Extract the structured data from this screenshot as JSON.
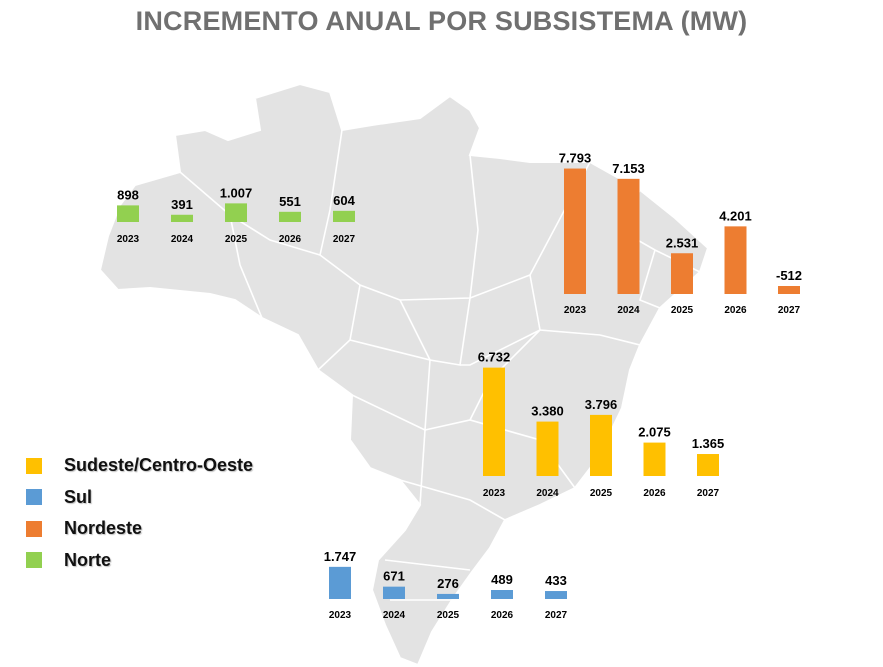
{
  "colors": {
    "map_fill": "#e3e3e3",
    "map_border": "#ffffff",
    "title": "#707070"
  },
  "title": "INCREMENTO ANUAL POR SUBSISTEMA (MW)",
  "legend": [
    {
      "label": "Sudeste/Centro-Oeste",
      "color": "#ffc000"
    },
    {
      "label": "Sul",
      "color": "#5b9bd5"
    },
    {
      "label": "Nordeste",
      "color": "#ed7d31"
    },
    {
      "label": "Norte",
      "color": "#92d050"
    }
  ],
  "chart_data": [
    {
      "type": "bar",
      "region": "Norte",
      "color": "#92d050",
      "categories": [
        "2023",
        "2024",
        "2025",
        "2026",
        "2027"
      ],
      "values": [
        898,
        391,
        1007,
        551,
        604
      ],
      "value_labels": [
        "898",
        "391",
        "1.007",
        "551",
        "604"
      ]
    },
    {
      "type": "bar",
      "region": "Nordeste",
      "color": "#ed7d31",
      "categories": [
        "2023",
        "2024",
        "2025",
        "2026",
        "2027"
      ],
      "values": [
        7793,
        7153,
        2531,
        4201,
        -512
      ],
      "value_labels": [
        "7.793",
        "7.153",
        "2.531",
        "4.201",
        "-512"
      ]
    },
    {
      "type": "bar",
      "region": "Sudeste/Centro-Oeste",
      "color": "#ffc000",
      "categories": [
        "2023",
        "2024",
        "2025",
        "2026",
        "2027"
      ],
      "values": [
        6732,
        3380,
        3796,
        2075,
        1365
      ],
      "value_labels": [
        "6.732",
        "3.380",
        "3.796",
        "2.075",
        "1.365"
      ]
    },
    {
      "type": "bar",
      "region": "Sul",
      "color": "#5b9bd5",
      "categories": [
        "2023",
        "2024",
        "2025",
        "2026",
        "2027"
      ],
      "values": [
        1747,
        671,
        276,
        489,
        433
      ],
      "value_labels": [
        "1.747",
        "671",
        "276",
        "489",
        "433"
      ]
    }
  ]
}
